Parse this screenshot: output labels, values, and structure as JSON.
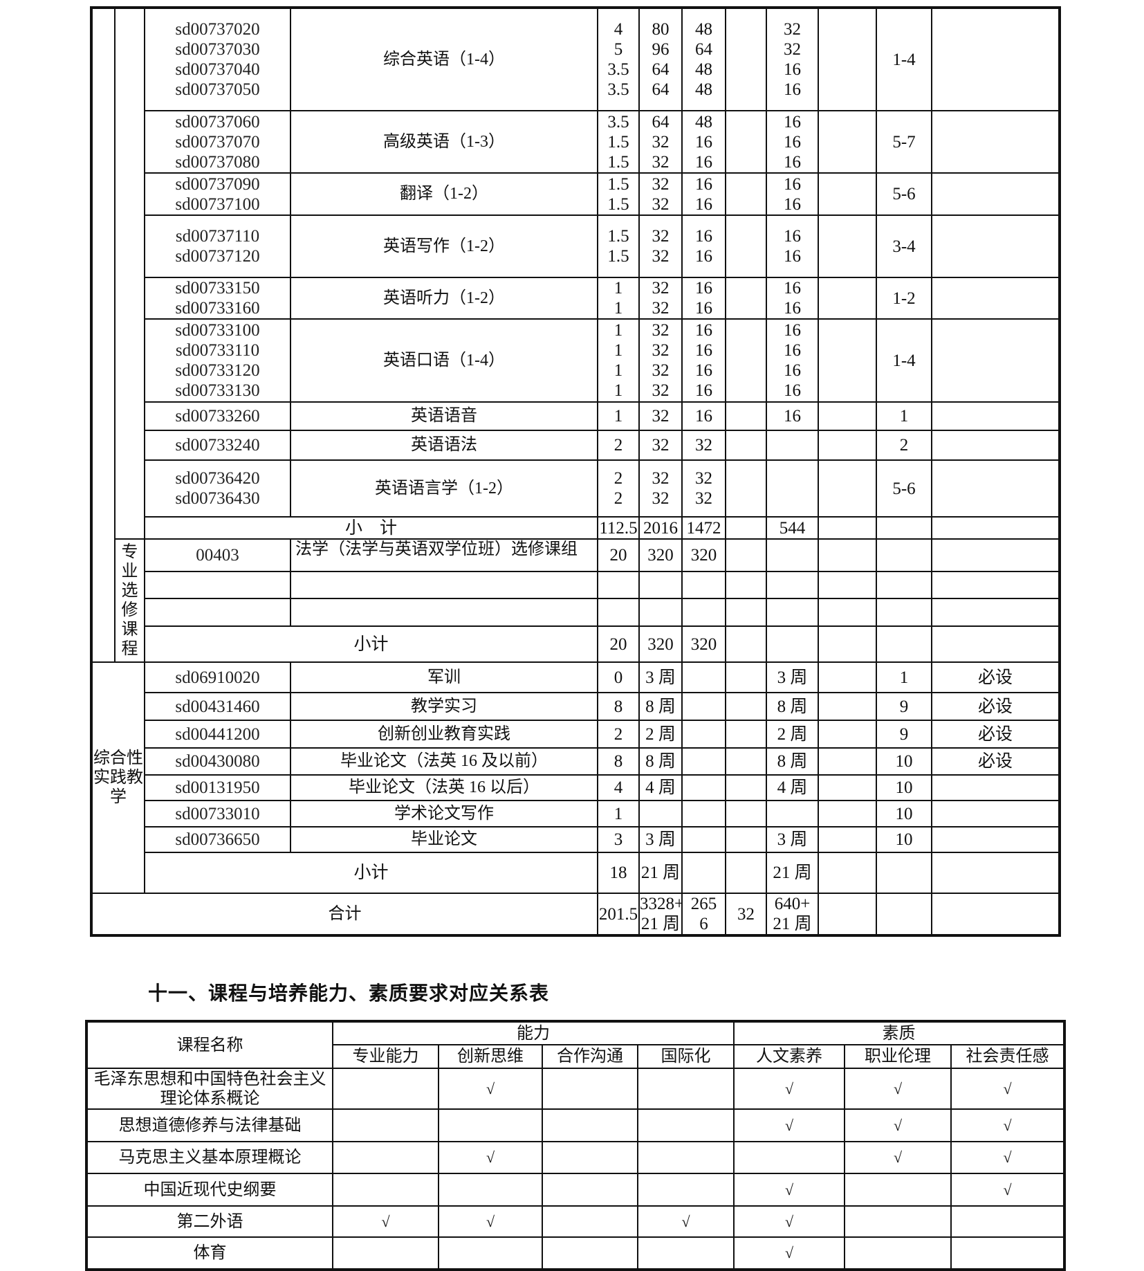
{
  "course_table": {
    "core_rows": [
      {
        "code": "sd00737020\nsd00737030\nsd00737040\nsd00737050",
        "name": "综合英语（1-4）",
        "credits": "4\n5\n3.5\n3.5",
        "total_hours": "80\n96\n64\n64",
        "lecture_hours": "48\n64\n48\n48",
        "col7": "",
        "practice_hours": "32\n32\n16\n16",
        "col9": "",
        "semester": "1-4",
        "note": ""
      },
      {
        "code": "sd00737060\nsd00737070\nsd00737080",
        "name": "高级英语（1-3）",
        "credits": "3.5\n1.5\n1.5",
        "total_hours": "64\n32\n32",
        "lecture_hours": "48\n16\n16",
        "col7": "",
        "practice_hours": "16\n16\n16",
        "col9": "",
        "semester": "5-7",
        "note": ""
      },
      {
        "code": "sd00737090\nsd00737100",
        "name": "翻译（1-2）",
        "credits": "1.5\n1.5",
        "total_hours": "32\n32",
        "lecture_hours": "16\n16",
        "col7": "",
        "practice_hours": "16\n16",
        "col9": "",
        "semester": "5-6",
        "note": ""
      },
      {
        "code": "sd00737110\nsd00737120",
        "name": "英语写作（1-2）",
        "credits": "1.5\n1.5",
        "total_hours": "32\n32",
        "lecture_hours": "16\n16",
        "col7": "",
        "practice_hours": "16\n16",
        "col9": "",
        "semester": "3-4",
        "note": ""
      },
      {
        "code": "sd00733150\nsd00733160",
        "name": "英语听力（1-2）",
        "credits": "1\n1",
        "total_hours": "32\n32",
        "lecture_hours": "16\n16",
        "col7": "",
        "practice_hours": "16\n16",
        "col9": "",
        "semester": "1-2",
        "note": ""
      },
      {
        "code": "sd00733100\nsd00733110\nsd00733120\nsd00733130",
        "name": "英语口语（1-4）",
        "credits": "1\n1\n1\n1",
        "total_hours": "32\n32\n32\n32",
        "lecture_hours": "16\n16\n16\n16",
        "col7": "",
        "practice_hours": "16\n16\n16\n16",
        "col9": "",
        "semester": "1-4",
        "note": ""
      },
      {
        "code": "sd00733260",
        "name": "英语语音",
        "credits": "1",
        "total_hours": "32",
        "lecture_hours": "16",
        "col7": "",
        "practice_hours": "16",
        "col9": "",
        "semester": "1",
        "note": ""
      },
      {
        "code": "sd00733240",
        "name": "英语语法",
        "credits": "2",
        "total_hours": "32",
        "lecture_hours": "32",
        "col7": "",
        "practice_hours": "",
        "col9": "",
        "semester": "2",
        "note": ""
      },
      {
        "code": "sd00736420\nsd00736430",
        "name": "英语语言学（1-2）",
        "credits": "2\n2",
        "total_hours": "32\n32",
        "lecture_hours": "32\n32",
        "col7": "",
        "practice_hours": "",
        "col9": "",
        "semester": "5-6",
        "note": ""
      }
    ],
    "core_subtotal": {
      "label": "小　计",
      "credits": "112.5",
      "total_hours": "2016",
      "lecture_hours": "1472",
      "col7": "",
      "practice_hours": "544",
      "col9": "",
      "semester": "",
      "note": ""
    },
    "elective_group_label": "专业选修课程",
    "elective_rows": [
      {
        "code": "00403",
        "name": "法学（法学与英语双学位班）选修课组",
        "credits": "20",
        "total_hours": "320",
        "lecture_hours": "320",
        "col7": "",
        "practice_hours": "",
        "col9": "",
        "semester": "",
        "note": ""
      },
      {
        "code": "",
        "name": "",
        "credits": "",
        "total_hours": "",
        "lecture_hours": "",
        "col7": "",
        "practice_hours": "",
        "col9": "",
        "semester": "",
        "note": ""
      },
      {
        "code": "",
        "name": "",
        "credits": "",
        "total_hours": "",
        "lecture_hours": "",
        "col7": "",
        "practice_hours": "",
        "col9": "",
        "semester": "",
        "note": ""
      }
    ],
    "elective_subtotal": {
      "label": "小计",
      "credits": "20",
      "total_hours": "320",
      "lecture_hours": "320",
      "col7": "",
      "practice_hours": "",
      "col9": "",
      "semester": "",
      "note": ""
    },
    "practice_group_label": "综合性实践教学",
    "practice_rows": [
      {
        "code": "sd06910020",
        "name": "军训",
        "credits": "0",
        "total_hours": "3 周",
        "lecture_hours": "",
        "col7": "",
        "practice_hours": "3 周",
        "col9": "",
        "semester": "1",
        "note": "必设"
      },
      {
        "code": "sd00431460",
        "name": "教学实习",
        "credits": "8",
        "total_hours": "8 周",
        "lecture_hours": "",
        "col7": "",
        "practice_hours": "8 周",
        "col9": "",
        "semester": "9",
        "note": "必设"
      },
      {
        "code": "sd00441200",
        "name": "创新创业教育实践",
        "credits": "2",
        "total_hours": "2 周",
        "lecture_hours": "",
        "col7": "",
        "practice_hours": "2 周",
        "col9": "",
        "semester": "9",
        "note": "必设"
      },
      {
        "code": "sd00430080",
        "name": "毕业论文（法英 16 及以前）",
        "credits": "8",
        "total_hours": "8 周",
        "lecture_hours": "",
        "col7": "",
        "practice_hours": "8 周",
        "col9": "",
        "semester": "10",
        "note": "必设"
      },
      {
        "code": "sd00131950",
        "name": "毕业论文（法英 16 以后）",
        "credits": "4",
        "total_hours": "4 周",
        "lecture_hours": "",
        "col7": "",
        "practice_hours": "4 周",
        "col9": "",
        "semester": "10",
        "note": ""
      },
      {
        "code": "sd00733010",
        "name": "学术论文写作",
        "credits": "1",
        "total_hours": "",
        "lecture_hours": "",
        "col7": "",
        "practice_hours": "",
        "col9": "",
        "semester": "10",
        "note": ""
      },
      {
        "code": "sd00736650",
        "name": "毕业论文",
        "credits": "3",
        "total_hours": "3 周",
        "lecture_hours": "",
        "col7": "",
        "practice_hours": "3 周",
        "col9": "",
        "semester": "10",
        "note": ""
      }
    ],
    "practice_subtotal": {
      "label": "小计",
      "credits": "18",
      "total_hours": "21 周",
      "lecture_hours": "",
      "col7": "",
      "practice_hours": "21 周",
      "col9": "",
      "semester": "",
      "note": ""
    },
    "total": {
      "label": "合计",
      "credits": "201.5",
      "total_hours": "3328+\n21 周",
      "lecture_hours": "265\n6",
      "col7": "32",
      "practice_hours": "640+\n21 周",
      "col9": "",
      "semester": "",
      "note": ""
    }
  },
  "section_heading": "十一、课程与培养能力、素质要求对应关系表",
  "mapping_table": {
    "course_header": "课程名称",
    "ability_header": "能力",
    "quality_header": "素质",
    "columns": [
      "专业能力",
      "创新思维",
      "合作沟通",
      "国际化",
      "人文素养",
      "职业伦理",
      "社会责任感"
    ],
    "rows": [
      {
        "course": "毛泽东思想和中国特色社会主义理论体系概论",
        "checks": [
          "",
          "√",
          "",
          "",
          "√",
          "√",
          "√"
        ]
      },
      {
        "course": "思想道德修养与法律基础",
        "checks": [
          "",
          "",
          "",
          "",
          "√",
          "√",
          "√"
        ]
      },
      {
        "course": "马克思主义基本原理概论",
        "checks": [
          "",
          "√",
          "",
          "",
          "",
          "√",
          "√"
        ]
      },
      {
        "course": "中国近现代史纲要",
        "checks": [
          "",
          "",
          "",
          "",
          "√",
          "",
          "√"
        ]
      },
      {
        "course": "第二外语",
        "checks": [
          "√",
          "√",
          "",
          "√",
          "√",
          "",
          ""
        ]
      },
      {
        "course": "体育",
        "checks": [
          "",
          "",
          "",
          "",
          "√",
          "",
          ""
        ]
      }
    ]
  }
}
